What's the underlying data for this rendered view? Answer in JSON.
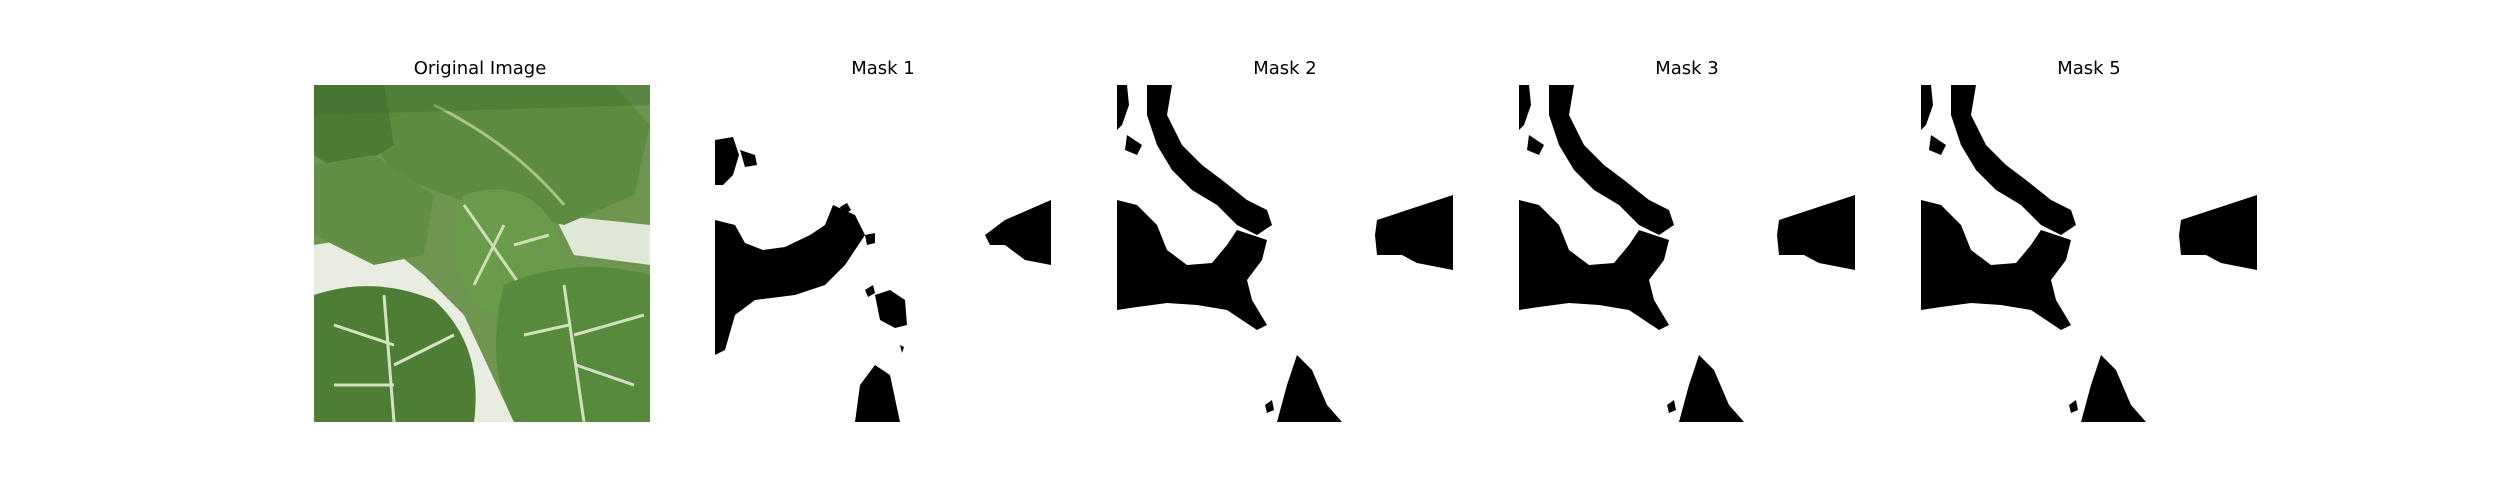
{
  "panels": [
    {
      "title": "Original Image",
      "kind": "photo",
      "description": "bok choy leaves"
    },
    {
      "title": "Mask 1",
      "kind": "mask"
    },
    {
      "title": "Mask 2",
      "kind": "mask"
    },
    {
      "title": "Mask 3",
      "kind": "mask"
    },
    {
      "title": "Mask 5",
      "kind": "mask"
    }
  ],
  "colors": {
    "background": "#ffffff",
    "mask_fill": "#000000",
    "leaf_dark": "#3f6b2e",
    "leaf_mid": "#5b8a3e",
    "leaf_light": "#7ea35a",
    "vein": "#d8e4c4",
    "stem": "#e9eee2"
  }
}
